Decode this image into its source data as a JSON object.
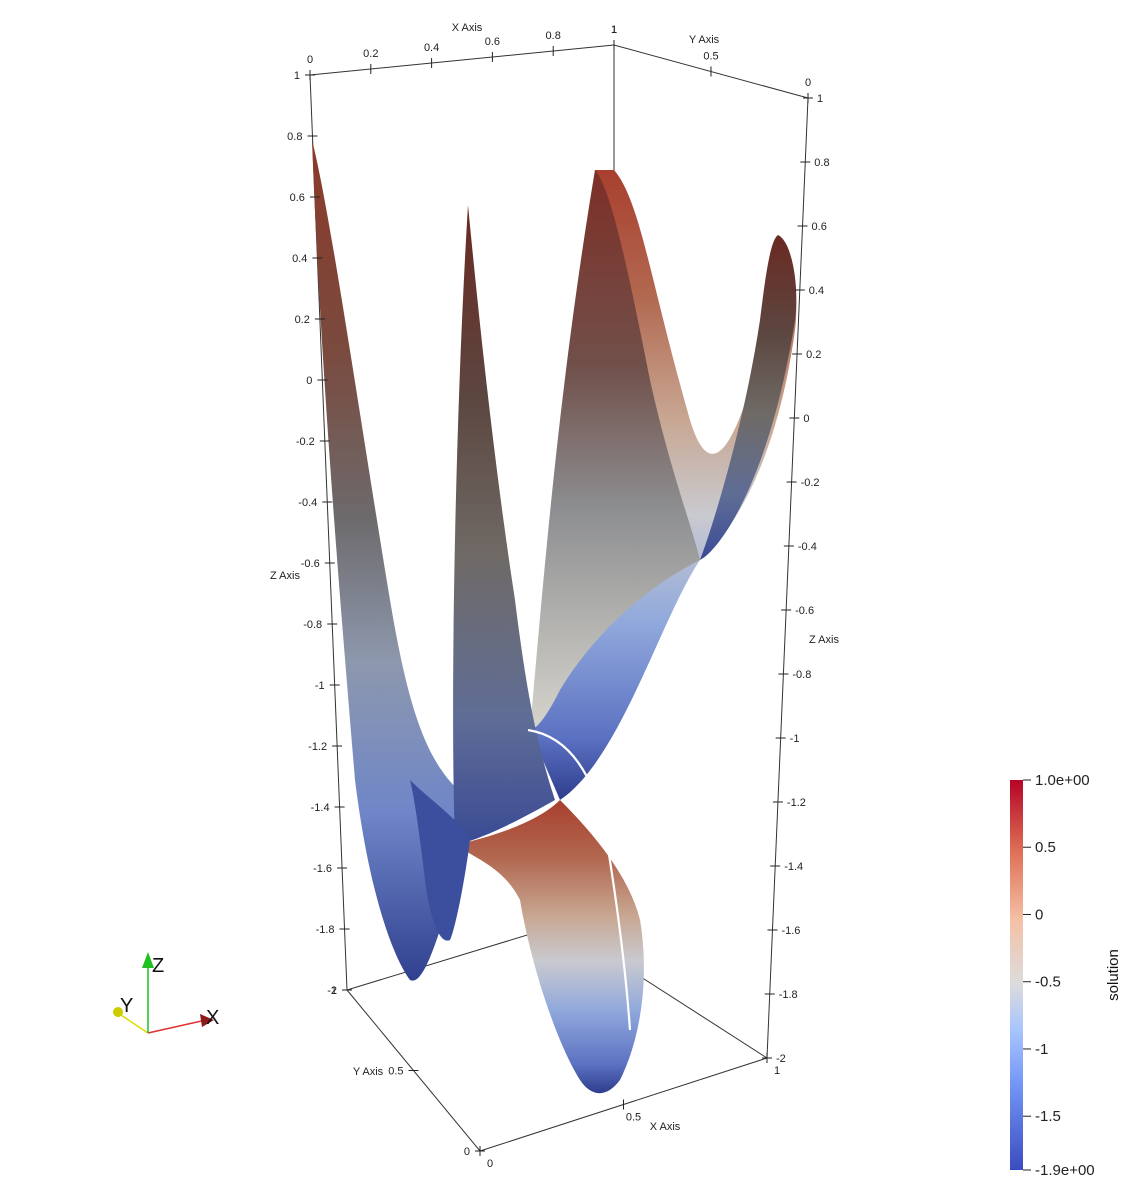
{
  "chart_data": {
    "type": "surface",
    "renderer": "3D surface plot (ParaView style)",
    "field_name": "solution",
    "axes": {
      "x": {
        "label": "X Axis",
        "range": [
          0,
          1
        ],
        "ticks_back": [
          "0",
          "0.2",
          "0.4",
          "0.6",
          "0.8",
          "1"
        ],
        "ticks_front": [
          "0",
          "0.5",
          "1"
        ]
      },
      "y": {
        "label": "Y Axis",
        "range": [
          0,
          1
        ],
        "ticks_back": [
          "0",
          "0.5",
          "1"
        ],
        "ticks_front": [
          "0",
          "0.5",
          "1"
        ]
      },
      "z": {
        "label": "Z Axis",
        "range": [
          -2,
          1
        ],
        "ticks_left": [
          "1",
          "0.8",
          "0.6",
          "0.4",
          "0.2",
          "0",
          "-0.2",
          "-0.4",
          "-0.6",
          "-0.8",
          "-1",
          "-1.2",
          "-1.4",
          "-1.6",
          "-1.8",
          "-2"
        ],
        "ticks_right": [
          "1",
          "0.8",
          "0.6",
          "0.4",
          "0.2",
          "0",
          "-0.2",
          "-0.4",
          "-0.6",
          "-0.8",
          "-1",
          "-1.2",
          "-1.4",
          "-1.6",
          "-1.8",
          "-2"
        ]
      }
    },
    "surface_extrema": {
      "max_solution": 1.0,
      "min_solution": -1.9,
      "peaks_approx": [
        {
          "x": 0.0,
          "y": 0.0,
          "z": 0.85
        },
        {
          "x": 0.5,
          "y": 0.5,
          "z": 0.7
        },
        {
          "x": 0.85,
          "y": 0.9,
          "z": 0.75
        },
        {
          "x": 1.0,
          "y": 0.2,
          "z": 0.6
        }
      ],
      "wells_approx": [
        {
          "x": 0.2,
          "y": 0.3,
          "z": -1.9
        },
        {
          "x": 0.4,
          "y": 0.7,
          "z": -1.9
        },
        {
          "x": 0.6,
          "y": 0.1,
          "z": -1.9
        }
      ]
    },
    "colorbar": {
      "title": "solution",
      "range": [
        -1.9,
        1.0
      ],
      "tick_labels": [
        "1.0e+00",
        "0.5",
        "0",
        "-0.5",
        "-1",
        "-1.5",
        "-1.9e+00"
      ],
      "tick_values": [
        1.0,
        0.5,
        0,
        -0.5,
        -1,
        -1.5,
        -1.9
      ],
      "colormap": "cool-to-warm",
      "colors": [
        "#3b4cc0",
        "#7396f5",
        "#b0cbfc",
        "#dddcdc",
        "#f4c1a6",
        "#e57f62",
        "#b40426"
      ]
    },
    "orientation_axes": {
      "labels": [
        "X",
        "Y",
        "Z"
      ],
      "colors": {
        "X": "#e03030",
        "Y": "#dcdc00",
        "Z": "#20c020"
      }
    }
  }
}
